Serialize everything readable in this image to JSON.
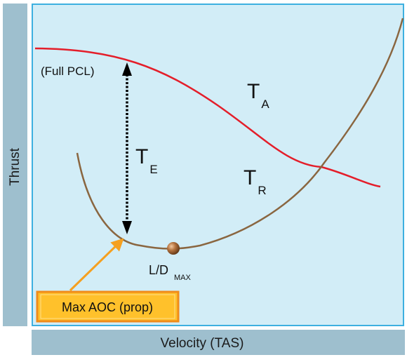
{
  "axes": {
    "ylabel": "Thrust",
    "xlabel": "Velocity (TAS)"
  },
  "labels": {
    "full_pcl": "(Full PCL)",
    "thrust_available": {
      "main": "T",
      "sub": "A"
    },
    "thrust_required": {
      "main": "T",
      "sub": "R"
    },
    "thrust_excess": {
      "main": "T",
      "sub": "E"
    },
    "ld_max": {
      "main": "L/D",
      "sub": "MAX"
    },
    "callout": "Max AOC (prop)"
  },
  "colors": {
    "panel_fill": "#d2edf7",
    "panel_border": "#3db0e0",
    "axis_bar": "#9ebfce",
    "thrust_available_curve": "#e41e2a",
    "thrust_required_curve": "#8a6640",
    "callout_fill": "#ffc12b",
    "callout_border": "#f08c1a",
    "arrow_orange": "#f5a020",
    "ld_marker": "#a96b3c"
  }
}
